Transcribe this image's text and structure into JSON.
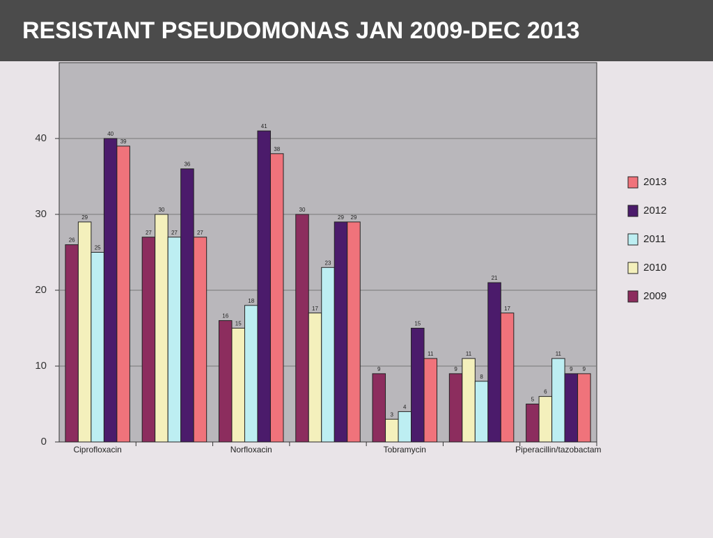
{
  "chart_data": {
    "type": "bar",
    "title": "RESISTANT PSEUDOMONAS JAN 2009-DEC 2013",
    "categories": [
      "Ciprofloxacin",
      null,
      "Norfloxacin",
      null,
      "Tobramycin",
      null,
      "Piperacillin/tazobactam"
    ],
    "series": [
      {
        "name": "2009",
        "color": "#8c2d5e",
        "values": [
          26,
          27,
          16,
          30,
          9,
          9,
          5
        ]
      },
      {
        "name": "2010",
        "color": "#f4f0bc",
        "values": [
          29,
          30,
          15,
          17,
          3,
          11,
          6
        ]
      },
      {
        "name": "2011",
        "color": "#bdeef2",
        "values": [
          25,
          27,
          18,
          23,
          4,
          8,
          11
        ]
      },
      {
        "name": "2012",
        "color": "#4b1b6b",
        "values": [
          40,
          36,
          41,
          29,
          15,
          21,
          9
        ]
      },
      {
        "name": "2013",
        "color": "#f0737b",
        "values": [
          39,
          27,
          38,
          29,
          11,
          17,
          9
        ]
      }
    ],
    "ylim": [
      0,
      50
    ],
    "yticks": [
      0,
      10,
      20,
      30,
      40
    ],
    "grid": true,
    "legend": "right"
  }
}
